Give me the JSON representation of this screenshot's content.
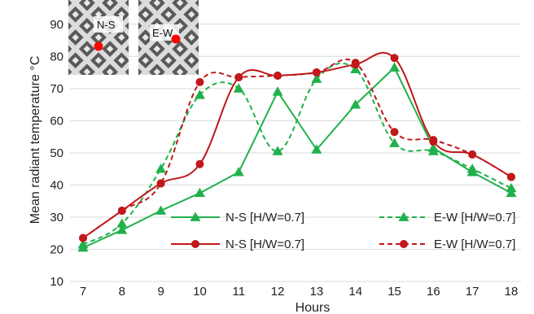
{
  "chart_data": {
    "type": "line",
    "title": "",
    "xlabel": "Hours",
    "ylabel": "Mean radiant temperature °C",
    "x": [
      7,
      8,
      9,
      10,
      11,
      12,
      13,
      14,
      15,
      16,
      17,
      18
    ],
    "x_ticks": [
      "7",
      "8",
      "9",
      "10",
      "11",
      "12",
      "13",
      "14",
      "15",
      "16",
      "17",
      "18"
    ],
    "ylim": [
      10,
      95
    ],
    "y_ticks": [
      "10",
      "20",
      "30",
      "40",
      "50",
      "60",
      "70",
      "80",
      "90"
    ],
    "grid": "horizontal",
    "legend_placement": "bottom-right",
    "series": [
      {
        "name": "N-S [H/W=0.7]",
        "color": "#21b14c",
        "dash": "solid",
        "marker": "triangle",
        "smooth": false,
        "values": [
          20.5,
          26,
          32,
          37.5,
          44,
          69,
          51,
          65,
          76.5,
          51.5,
          44,
          37.5
        ]
      },
      {
        "name": "E-W [H/W=0.7]",
        "color": "#21b14c",
        "dash": "dashed",
        "marker": "triangle",
        "smooth": true,
        "values": [
          21.5,
          28,
          45,
          68,
          70,
          50.5,
          73,
          76,
          53,
          50.5,
          45,
          39
        ]
      },
      {
        "name": "N-S [H/W=0.7]",
        "color": "#c0181b",
        "dash": "solid",
        "marker": "circle",
        "smooth": true,
        "values": [
          23.5,
          32,
          40.5,
          46.5,
          73.5,
          74,
          75,
          77.5,
          79.5,
          53.5,
          49.5,
          42.5
        ]
      },
      {
        "name": "E-W [H/W=0.7]",
        "color": "#c0181b",
        "dash": "dashed",
        "marker": "circle",
        "smooth": true,
        "values": [
          23.5,
          32,
          40.5,
          72,
          73.5,
          74,
          75,
          78,
          56.5,
          54,
          49.5,
          42.5
        ]
      }
    ],
    "insets": [
      {
        "label": "N-S",
        "marker_color": "#ff0000",
        "pattern_angle": 45
      },
      {
        "label": "E-W",
        "marker_color": "#ff0000",
        "pattern_angle": -45
      }
    ]
  }
}
